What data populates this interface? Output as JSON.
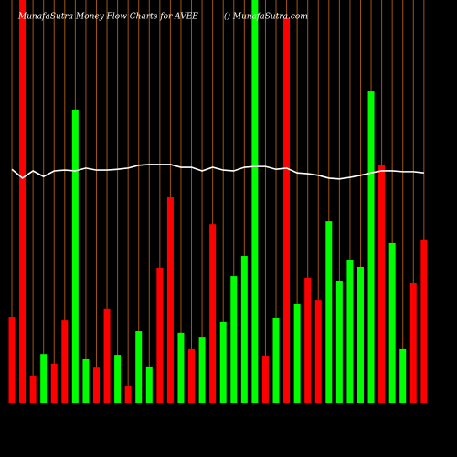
{
  "chart_data": {
    "type": "bar",
    "title": "MunafaSutra  Money Flow  Charts for AVEE",
    "subtitle": "() MunafaSutra.com",
    "categories": [
      null,
      null,
      null,
      null,
      null,
      null,
      null,
      null,
      null,
      null,
      null,
      null,
      null,
      null,
      null,
      null,
      null,
      null,
      null,
      null,
      null,
      null,
      null,
      null,
      null,
      null,
      null,
      null,
      null,
      null,
      null,
      null,
      null,
      null,
      null,
      null,
      null,
      null,
      null,
      null
    ],
    "values": [
      21.3,
      100,
      6.8,
      12.2,
      9.8,
      20.6,
      72.8,
      10.9,
      8.8,
      23.4,
      12.0,
      4.3,
      17.9,
      9.1,
      33.6,
      51.2,
      17.5,
      13.4,
      16.3,
      44.4,
      20.2,
      31.5,
      36.5,
      100,
      11.8,
      21.1,
      95.5,
      24.5,
      31.1,
      25.6,
      45.1,
      30.4,
      35.6,
      33.8,
      77.3,
      59.0,
      39.7,
      13.4,
      29.7,
      40.4
    ],
    "colors": [
      "#ff0000",
      "#ff0000",
      "#ff0000",
      "#00ff00",
      "#ff0000",
      "#ff0000",
      "#00ff00",
      "#00ff00",
      "#ff0000",
      "#ff0000",
      "#00ff00",
      "#ff0000",
      "#00ff00",
      "#00ff00",
      "#ff0000",
      "#ff0000",
      "#00ff00",
      "#ff0000",
      "#00ff00",
      "#ff0000",
      "#00ff00",
      "#00ff00",
      "#00ff00",
      "#00ff00",
      "#ff0000",
      "#00ff00",
      "#ff0000",
      "#00ff00",
      "#ff0000",
      "#ff0000",
      "#00ff00",
      "#00ff00",
      "#00ff00",
      "#00ff00",
      "#00ff00",
      "#ff0000",
      "#00ff00",
      "#00ff00",
      "#ff0000",
      "#ff0000"
    ],
    "line": {
      "color": "#ffffff",
      "values": [
        58.0,
        55.8,
        57.6,
        56.2,
        57.6,
        57.8,
        57.6,
        58.3,
        57.8,
        57.8,
        58.0,
        58.3,
        59.0,
        59.2,
        59.2,
        59.2,
        58.5,
        58.5,
        57.6,
        58.5,
        57.8,
        57.6,
        58.5,
        58.7,
        58.7,
        58.0,
        58.3,
        57.1,
        56.9,
        56.5,
        55.8,
        55.6,
        56.0,
        56.5,
        57.1,
        57.6,
        57.6,
        57.4,
        57.4,
        57.1
      ]
    },
    "grid_color": "#a3560c",
    "ylim": [
      0,
      100
    ],
    "grid": true
  }
}
